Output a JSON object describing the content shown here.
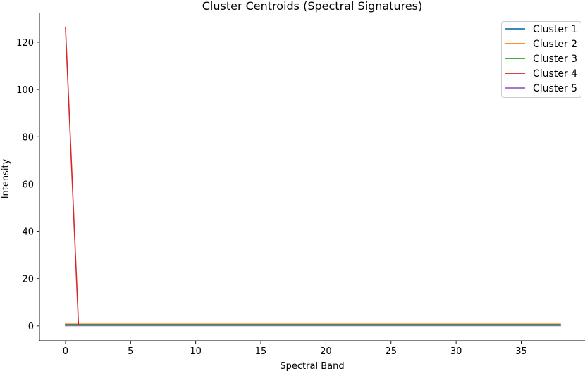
{
  "chart_data": {
    "type": "line",
    "title": "Cluster Centroids (Spectral Signatures)",
    "xlabel": "Spectral Band",
    "ylabel": "Intensity",
    "xlim": [
      -2,
      39.9
    ],
    "ylim": [
      -6.3,
      132.2
    ],
    "xticks": [
      0,
      5,
      10,
      15,
      20,
      25,
      30,
      35
    ],
    "yticks": [
      0,
      20,
      40,
      60,
      80,
      100,
      120
    ],
    "grid": false,
    "legend_position": "top-right",
    "colors": [
      "#1f77b4",
      "#ff7f0e",
      "#2ca02c",
      "#d62728",
      "#9467bd"
    ],
    "series": [
      {
        "name": "Cluster 1",
        "x_start": 0,
        "x_end": 38,
        "values": [
          0.3,
          0.3,
          0.3,
          0.3,
          0.3,
          0.3,
          0.3,
          0.3,
          0.3,
          0.3,
          0.3,
          0.3,
          0.3,
          0.3,
          0.3,
          0.3,
          0.3,
          0.3,
          0.3,
          0.3,
          0.3,
          0.3,
          0.3,
          0.3,
          0.3,
          0.3,
          0.3,
          0.3,
          0.3,
          0.3,
          0.3,
          0.3,
          0.3,
          0.3,
          0.3,
          0.3,
          0.3,
          0.3,
          0.3
        ]
      },
      {
        "name": "Cluster 2",
        "x_start": 0,
        "x_end": 38,
        "values": [
          0.8,
          0.8,
          0.8,
          0.8,
          0.8,
          0.8,
          0.8,
          0.8,
          0.8,
          0.8,
          0.8,
          0.8,
          0.8,
          0.8,
          0.8,
          0.8,
          0.8,
          0.8,
          0.8,
          0.8,
          0.8,
          0.8,
          0.8,
          0.8,
          0.8,
          0.8,
          0.8,
          0.8,
          0.8,
          0.8,
          0.8,
          0.8,
          0.8,
          0.8,
          0.8,
          0.8,
          0.8,
          0.8,
          0.8
        ]
      },
      {
        "name": "Cluster 3",
        "x_start": 0,
        "x_end": 38,
        "values": [
          0.6,
          0.6,
          0.6,
          0.6,
          0.6,
          0.6,
          0.6,
          0.6,
          0.6,
          0.6,
          0.6,
          0.6,
          0.6,
          0.6,
          0.6,
          0.6,
          0.6,
          0.6,
          0.6,
          0.6,
          0.6,
          0.6,
          0.6,
          0.6,
          0.6,
          0.6,
          0.6,
          0.6,
          0.6,
          0.6,
          0.6,
          0.6,
          0.6,
          0.6,
          0.6,
          0.6,
          0.6,
          0.6,
          0.6
        ]
      },
      {
        "name": "Cluster 4",
        "x_start": 0,
        "x_end": 38,
        "values": [
          126,
          0.2,
          0.2,
          0.2,
          0.2,
          0.2,
          0.2,
          0.2,
          0.2,
          0.2,
          0.2,
          0.2,
          0.2,
          0.2,
          0.2,
          0.2,
          0.2,
          0.2,
          0.2,
          0.2,
          0.2,
          0.2,
          0.2,
          0.2,
          0.2,
          0.2,
          0.2,
          0.2,
          0.2,
          0.2,
          0.2,
          0.2,
          0.2,
          0.2,
          0.2,
          0.2,
          0.2,
          0.2,
          0.2
        ]
      },
      {
        "name": "Cluster 5",
        "x_start": 0,
        "x_end": 38,
        "values": [
          0.1,
          0.1,
          0.1,
          0.1,
          0.1,
          0.1,
          0.1,
          0.1,
          0.1,
          0.1,
          0.1,
          0.1,
          0.1,
          0.1,
          0.1,
          0.1,
          0.1,
          0.1,
          0.1,
          0.1,
          0.1,
          0.1,
          0.1,
          0.1,
          0.1,
          0.1,
          0.1,
          0.1,
          0.1,
          0.1,
          0.1,
          0.1,
          0.1,
          0.1,
          0.1,
          0.1,
          0.1,
          0.1,
          0.1
        ]
      }
    ]
  }
}
